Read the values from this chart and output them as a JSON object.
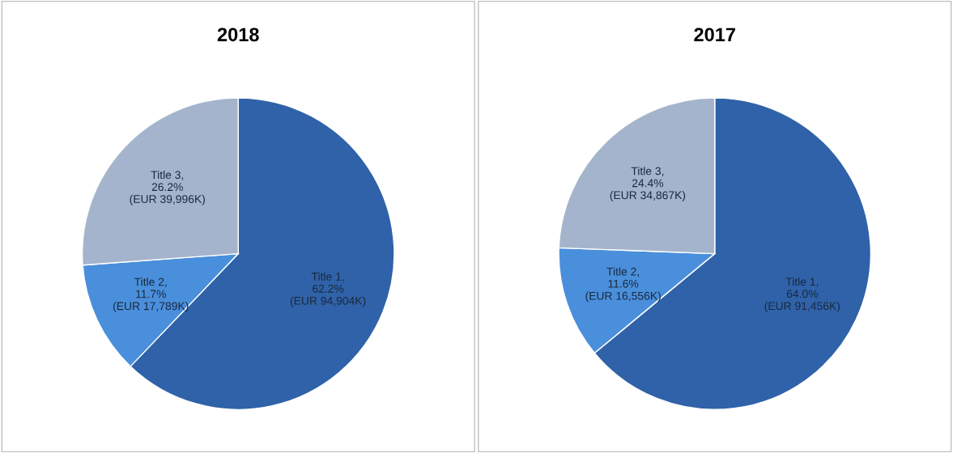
{
  "chart_data": [
    {
      "type": "pie",
      "title": "2018",
      "categories": [
        "Title 1",
        "Title 2",
        "Title 3"
      ],
      "values": [
        62.2,
        11.7,
        26.2
      ],
      "colors": [
        "#2f62a8",
        "#4a8fdb",
        "#a4b4cc"
      ],
      "value_labels": [
        ",\n62.2%\n(EUR 94,904K)",
        ",\n11.7%\n(EUR 17,789K)",
        ",\n26.2%\n(EUR 39,996K)"
      ]
    },
    {
      "type": "pie",
      "title": "2017",
      "categories": [
        "Title 1",
        "Title 2",
        "Title 3"
      ],
      "values": [
        64.0,
        11.6,
        24.4
      ],
      "colors": [
        "#2f62a8",
        "#4a8fdb",
        "#a4b4cc"
      ],
      "value_labels": [
        ",\n64.0%\n(EUR 91,456K)",
        ",\n11.6%\n(EUR 16,556K)",
        ",\n24.4%\n(EUR 34,867K)"
      ]
    }
  ]
}
